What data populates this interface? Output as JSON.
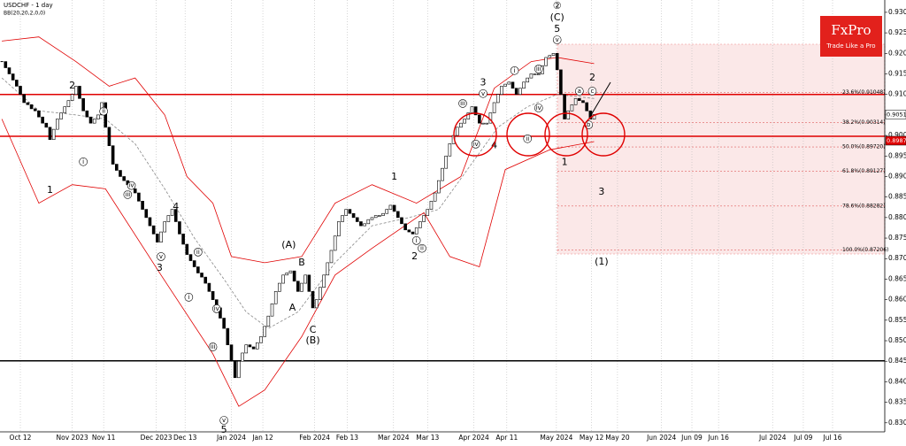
{
  "header": {
    "title": "USDCHF - 1 day",
    "indicator": "BB(20,20,2,0,0)"
  },
  "logo": {
    "brand": "FxPro",
    "slogan": "Trade Like a Pro"
  },
  "chart_data": {
    "type": "candlestick",
    "close": [
      0.918,
      0.9165,
      0.915,
      0.9135,
      0.912,
      0.91,
      0.908,
      0.9075,
      0.9065,
      0.906,
      0.9045,
      0.903,
      0.902,
      0.899,
      0.9015,
      0.904,
      0.9055,
      0.907,
      0.9085,
      0.91,
      0.912,
      0.909,
      0.906,
      0.9045,
      0.903,
      0.904,
      0.905,
      0.908,
      0.902,
      0.8975,
      0.893,
      0.8915,
      0.89,
      0.889,
      0.888,
      0.887,
      0.886,
      0.884,
      0.882,
      0.88,
      0.878,
      0.876,
      0.874,
      0.8765,
      0.879,
      0.8805,
      0.882,
      0.879,
      0.876,
      0.8735,
      0.871,
      0.8695,
      0.868,
      0.8665,
      0.8655,
      0.864,
      0.862,
      0.86,
      0.858,
      0.8555,
      0.853,
      0.849,
      0.845,
      0.841,
      0.845,
      0.847,
      0.849,
      0.8485,
      0.848,
      0.8495,
      0.851,
      0.8535,
      0.856,
      0.859,
      0.862,
      0.864,
      0.866,
      0.8665,
      0.867,
      0.8645,
      0.862,
      0.864,
      0.866,
      0.862,
      0.858,
      0.86,
      0.863,
      0.866,
      0.869,
      0.872,
      0.8755,
      0.879,
      0.8805,
      0.882,
      0.881,
      0.88,
      0.879,
      0.878,
      0.8785,
      0.8795,
      0.88,
      0.8805,
      0.8805,
      0.881,
      0.882,
      0.883,
      0.8815,
      0.88,
      0.8785,
      0.877,
      0.8765,
      0.876,
      0.8775,
      0.879,
      0.8805,
      0.882,
      0.884,
      0.886,
      0.889,
      0.892,
      0.895,
      0.898,
      0.9,
      0.902,
      0.903,
      0.904,
      0.9055,
      0.907,
      0.905,
      0.903,
      0.903,
      0.903,
      0.9055,
      0.908,
      0.91,
      0.912,
      0.9125,
      0.913,
      0.9115,
      0.91,
      0.9115,
      0.913,
      0.914,
      0.915,
      0.915,
      0.915,
      0.917,
      0.919,
      0.9195,
      0.92,
      0.916,
      0.91,
      0.904,
      0.906,
      0.9075,
      0.909,
      0.9085,
      0.908,
      0.906,
      0.904,
      0.9051
    ],
    "bands": [
      {
        "name": "upper",
        "color": "#e00000",
        "x": [
          0,
          10,
          20,
          29,
          36,
          44,
          50,
          57,
          62,
          71,
          81,
          90,
          100,
          112,
          124,
          133,
          143,
          150,
          160
        ],
        "values": [
          0.923,
          0.924,
          0.918,
          0.912,
          0.914,
          0.905,
          0.89,
          0.8835,
          0.8705,
          0.869,
          0.8705,
          0.8835,
          0.888,
          0.8835,
          0.89,
          0.9115,
          0.918,
          0.919,
          0.9175
        ]
      },
      {
        "name": "middle",
        "color": "#888888",
        "dashed": true,
        "x": [
          0,
          10,
          20,
          28,
          36,
          44,
          52,
          60,
          66,
          72,
          80,
          90,
          100,
          110,
          118,
          126,
          134,
          142,
          150,
          160
        ],
        "values": [
          0.914,
          0.906,
          0.905,
          0.904,
          0.898,
          0.887,
          0.875,
          0.865,
          0.857,
          0.853,
          0.857,
          0.869,
          0.878,
          0.88,
          0.882,
          0.892,
          0.902,
          0.907,
          0.91,
          0.909
        ]
      },
      {
        "name": "lower",
        "color": "#e00000",
        "x": [
          0,
          10,
          19,
          28,
          43,
          57,
          64,
          71,
          81,
          90,
          100,
          114,
          121,
          129,
          136,
          148,
          160
        ],
        "values": [
          0.904,
          0.8835,
          0.888,
          0.887,
          0.866,
          0.8468,
          0.834,
          0.838,
          0.851,
          0.866,
          0.8725,
          0.8812,
          0.8705,
          0.868,
          0.8917,
          0.8965,
          0.8985
        ]
      }
    ],
    "xlim": [
      -0.5,
      238.5
    ],
    "ylim": [
      0.8278,
      0.933
    ],
    "xticks": [
      {
        "value": 5,
        "label": "Oct 12"
      },
      {
        "value": 19,
        "label": "Nov 2023"
      },
      {
        "value": 27.5,
        "label": "Nov 11"
      },
      {
        "value": 41.7,
        "label": "Dec 2023"
      },
      {
        "value": 49.5,
        "label": "Dec 13"
      },
      {
        "value": 62,
        "label": "Jan 2024"
      },
      {
        "value": 70.5,
        "label": "Jan 12"
      },
      {
        "value": 84.5,
        "label": "Feb 2024"
      },
      {
        "value": 93.3,
        "label": "Feb 13"
      },
      {
        "value": 105.8,
        "label": "Mar 2024"
      },
      {
        "value": 115,
        "label": "Mar 13"
      },
      {
        "value": 127.5,
        "label": "Apr 2024"
      },
      {
        "value": 136.4,
        "label": "Apr 11"
      },
      {
        "value": 149.8,
        "label": "May 2024"
      },
      {
        "value": 159.3,
        "label": "May 12"
      },
      {
        "value": 166.3,
        "label": "May 20"
      },
      {
        "value": 178.2,
        "label": "Jun 2024"
      },
      {
        "value": 186.4,
        "label": "Jun 09"
      },
      {
        "value": 193.6,
        "label": "Jun 16"
      },
      {
        "value": 208.2,
        "label": "Jul 2024"
      },
      {
        "value": 216.5,
        "label": "Jul 09"
      },
      {
        "value": 224.4,
        "label": "Jul 16"
      }
    ],
    "yticks": [
      {
        "value": 0.83,
        "label": "0.83000"
      },
      {
        "value": 0.835,
        "label": "0.83500"
      },
      {
        "value": 0.84,
        "label": "0.84000"
      },
      {
        "value": 0.845,
        "label": "0.84500"
      },
      {
        "value": 0.85,
        "label": "0.85000"
      },
      {
        "value": 0.855,
        "label": "0.85500"
      },
      {
        "value": 0.86,
        "label": "0.86000"
      },
      {
        "value": 0.865,
        "label": "0.86500"
      },
      {
        "value": 0.87,
        "label": "0.87000"
      },
      {
        "value": 0.875,
        "label": "0.87500"
      },
      {
        "value": 0.88,
        "label": "0.88000"
      },
      {
        "value": 0.885,
        "label": "0.88500"
      },
      {
        "value": 0.89,
        "label": "0.89000"
      },
      {
        "value": 0.895,
        "label": "0.89500"
      },
      {
        "value": 0.9,
        "label": "0.90000"
      },
      {
        "value": 0.905,
        "label": "0.90500"
      },
      {
        "value": 0.91,
        "label": "0.91000"
      },
      {
        "value": 0.915,
        "label": "0.91500"
      },
      {
        "value": 0.92,
        "label": "0.92000"
      },
      {
        "value": 0.925,
        "label": "0.92500"
      },
      {
        "value": 0.93,
        "label": "0.93000"
      }
    ],
    "horizontal_lines": [
      {
        "value": 0.91,
        "color": "#e00000"
      },
      {
        "value": 0.8998,
        "color": "#e00000"
      },
      {
        "value": 0.8451,
        "color": "#000000"
      }
    ],
    "fib_levels": [
      {
        "value": 0.91048,
        "label": "23.6%(0.91048)"
      },
      {
        "value": 0.90314,
        "label": "38.2%(0.90314)"
      },
      {
        "value": 0.8972,
        "label": "50.0%(0.89720)"
      },
      {
        "value": 0.89127,
        "label": "61.8%(0.89127)"
      },
      {
        "value": 0.88282,
        "label": "78.6%(0.88282)"
      },
      {
        "value": 0.87206,
        "label": "100.0%(0.87206)"
      }
    ],
    "price_tags": [
      {
        "value": 0.90512,
        "color": "#ffffff"
      },
      {
        "value": 0.89873,
        "color": "#e00000"
      }
    ],
    "annotations": [
      {
        "text": "1",
        "x": 13,
        "y": 0.8867
      },
      {
        "text": "2",
        "x": 19,
        "y": 0.9121
      },
      {
        "text": "i",
        "x": 22,
        "y": 0.8936
      },
      {
        "text": "ii",
        "x": 27.5,
        "y": 0.9059
      },
      {
        "text": "iii",
        "x": 34,
        "y": 0.8856
      },
      {
        "text": "iv",
        "x": 35,
        "y": 0.8878
      },
      {
        "text": "4",
        "x": 47,
        "y": 0.8826
      },
      {
        "text": "ii",
        "x": 53,
        "y": 0.8716
      },
      {
        "text": "v",
        "x": 43,
        "y": 0.8705
      },
      {
        "text": "3",
        "x": 42.6,
        "y": 0.8677
      },
      {
        "text": "i",
        "x": 50.5,
        "y": 0.8606
      },
      {
        "text": "iii",
        "x": 57,
        "y": 0.8485
      },
      {
        "text": "iv",
        "x": 58,
        "y": 0.8578
      },
      {
        "text": "v",
        "x": 60,
        "y": 0.8306
      },
      {
        "text": "5",
        "x": 60,
        "y": 0.8282
      },
      {
        "text": "(A)",
        "x": 77.5,
        "y": 0.8733
      },
      {
        "text": "B",
        "x": 81,
        "y": 0.869
      },
      {
        "text": "A",
        "x": 78.5,
        "y": 0.858
      },
      {
        "text": "C",
        "x": 84,
        "y": 0.8526
      },
      {
        "text": "(B)",
        "x": 84,
        "y": 0.85
      },
      {
        "text": "1",
        "x": 106,
        "y": 0.8899
      },
      {
        "text": "2",
        "x": 111.5,
        "y": 0.8705
      },
      {
        "text": "i",
        "x": 112,
        "y": 0.8744
      },
      {
        "text": "ii",
        "x": 113.5,
        "y": 0.8725
      },
      {
        "text": "3",
        "x": 130,
        "y": 0.9128
      },
      {
        "text": "iii",
        "x": 124.5,
        "y": 0.9078
      },
      {
        "text": "v",
        "x": 130,
        "y": 0.9102
      },
      {
        "text": "iv",
        "x": 128,
        "y": 0.8979
      },
      {
        "text": "4",
        "x": 133,
        "y": 0.8975
      },
      {
        "text": "i",
        "x": 138.5,
        "y": 0.9158
      },
      {
        "text": "iii",
        "x": 145,
        "y": 0.9162
      },
      {
        "text": "ii",
        "x": 142,
        "y": 0.8992
      },
      {
        "text": "iv",
        "x": 145,
        "y": 0.9067
      },
      {
        "text": "1",
        "x": 152,
        "y": 0.8934
      },
      {
        "text": "v",
        "x": 150,
        "y": 0.9233
      },
      {
        "text": "5",
        "x": 150,
        "y": 0.9259
      },
      {
        "text": "(C)",
        "x": 150,
        "y": 0.9287
      },
      {
        "text": "②",
        "x": 150,
        "y": 0.9315
      },
      {
        "text": "2",
        "x": 159.5,
        "y": 0.914
      },
      {
        "text": "a",
        "x": 156,
        "y": 0.9108
      },
      {
        "text": "c",
        "x": 159.5,
        "y": 0.9108
      },
      {
        "text": "b",
        "x": 158.5,
        "y": 0.9026
      },
      {
        "text": "3",
        "x": 162,
        "y": 0.8862
      },
      {
        "text": "(1)",
        "x": 162,
        "y": 0.8692
      }
    ]
  }
}
